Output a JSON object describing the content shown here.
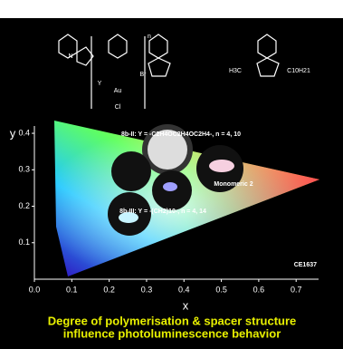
{
  "chart_data": {
    "type": "cie",
    "x_label": "x",
    "y_label": "y",
    "xlim": [
      0,
      0.76
    ],
    "ylim": [
      0,
      0.42
    ],
    "xticks": [
      {
        "value": 0,
        "label": "0.0"
      },
      0.1,
      0.2,
      0.3,
      0.4,
      0.5,
      0.6,
      0.7
    ],
    "yticks": [
      0.1,
      0.2,
      0.3,
      0.4
    ],
    "annotations": [
      "8b-II: Y = -C2H4OC2H4OC2H4-, n = 4, 10",
      "Monomeric 2",
      "8b-III: Y = -(CH2)10-, n = 4, 14",
      "CE1637"
    ],
    "structure_labels": [
      "N",
      "Y",
      "Au",
      "Cl",
      "Br",
      "n",
      "H3C",
      "C10H21"
    ],
    "caption": [
      "Degree of polymerisation & spacer structure",
      "influence photoluminescence behavior"
    ]
  }
}
